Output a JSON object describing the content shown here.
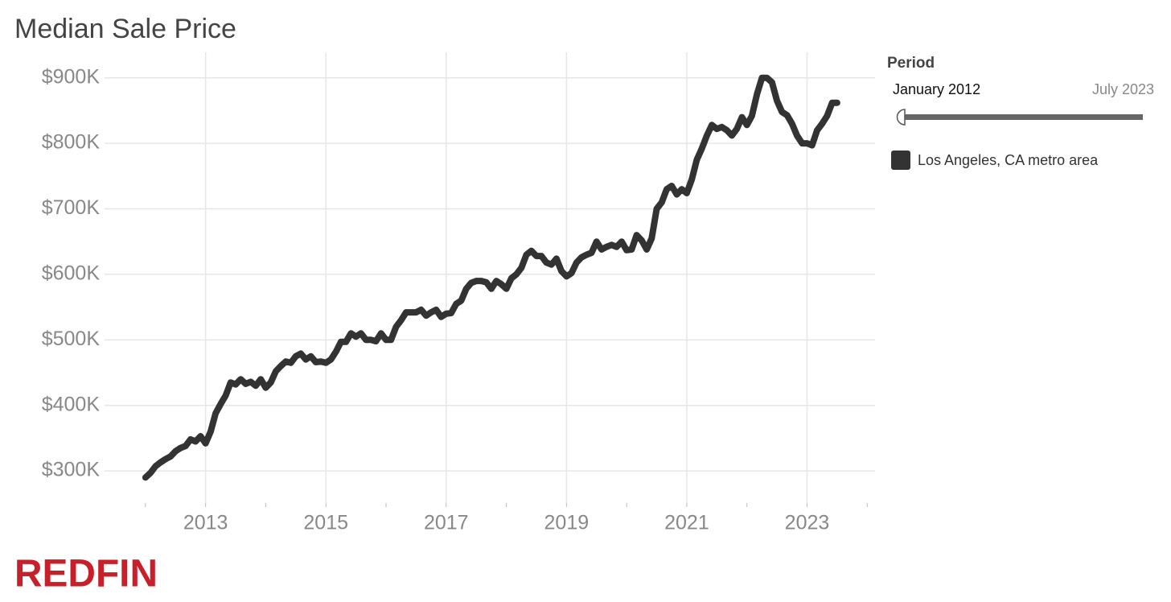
{
  "chart_data": {
    "type": "line",
    "title": "Median Sale Price",
    "logo": "REDFIN",
    "period_filter": {
      "label": "Period",
      "start": "January 2012",
      "end": "July 2023"
    },
    "x": [
      "2012-01",
      "2012-02",
      "2012-03",
      "2012-04",
      "2012-05",
      "2012-06",
      "2012-07",
      "2012-08",
      "2012-09",
      "2012-10",
      "2012-11",
      "2012-12",
      "2013-01",
      "2013-02",
      "2013-03",
      "2013-04",
      "2013-05",
      "2013-06",
      "2013-07",
      "2013-08",
      "2013-09",
      "2013-10",
      "2013-11",
      "2013-12",
      "2014-01",
      "2014-02",
      "2014-03",
      "2014-04",
      "2014-05",
      "2014-06",
      "2014-07",
      "2014-08",
      "2014-09",
      "2014-10",
      "2014-11",
      "2014-12",
      "2015-01",
      "2015-02",
      "2015-03",
      "2015-04",
      "2015-05",
      "2015-06",
      "2015-07",
      "2015-08",
      "2015-09",
      "2015-10",
      "2015-11",
      "2015-12",
      "2016-01",
      "2016-02",
      "2016-03",
      "2016-04",
      "2016-05",
      "2016-06",
      "2016-07",
      "2016-08",
      "2016-09",
      "2016-10",
      "2016-11",
      "2016-12",
      "2017-01",
      "2017-02",
      "2017-03",
      "2017-04",
      "2017-05",
      "2017-06",
      "2017-07",
      "2017-08",
      "2017-09",
      "2017-10",
      "2017-11",
      "2017-12",
      "2018-01",
      "2018-02",
      "2018-03",
      "2018-04",
      "2018-05",
      "2018-06",
      "2018-07",
      "2018-08",
      "2018-09",
      "2018-10",
      "2018-11",
      "2018-12",
      "2019-01",
      "2019-02",
      "2019-03",
      "2019-04",
      "2019-05",
      "2019-06",
      "2019-07",
      "2019-08",
      "2019-09",
      "2019-10",
      "2019-11",
      "2019-12",
      "2020-01",
      "2020-02",
      "2020-03",
      "2020-04",
      "2020-05",
      "2020-06",
      "2020-07",
      "2020-08",
      "2020-09",
      "2020-10",
      "2020-11",
      "2020-12",
      "2021-01",
      "2021-02",
      "2021-03",
      "2021-04",
      "2021-05",
      "2021-06",
      "2021-07",
      "2021-08",
      "2021-09",
      "2021-10",
      "2021-11",
      "2021-12",
      "2022-01",
      "2022-02",
      "2022-03",
      "2022-04",
      "2022-05",
      "2022-06",
      "2022-07",
      "2022-08",
      "2022-09",
      "2022-10",
      "2022-11",
      "2022-12",
      "2023-01",
      "2023-02",
      "2023-03",
      "2023-04",
      "2023-05",
      "2023-06",
      "2023-07"
    ],
    "series": [
      {
        "name": "Los Angeles, CA metro area",
        "color": "#333333",
        "values": [
          290000,
          297000,
          307000,
          313000,
          318000,
          322000,
          330000,
          335000,
          338000,
          348000,
          345000,
          353000,
          342000,
          360000,
          388000,
          402000,
          415000,
          435000,
          432000,
          440000,
          433000,
          436000,
          430000,
          440000,
          427000,
          435000,
          452000,
          460000,
          467000,
          465000,
          475000,
          479000,
          470000,
          475000,
          466000,
          467000,
          465000,
          470000,
          482000,
          497000,
          497000,
          510000,
          505000,
          510000,
          500000,
          500000,
          498000,
          510000,
          500000,
          500000,
          520000,
          530000,
          542000,
          542000,
          542000,
          546000,
          537000,
          542000,
          546000,
          535000,
          540000,
          541000,
          555000,
          560000,
          578000,
          587000,
          590000,
          590000,
          588000,
          578000,
          590000,
          585000,
          578000,
          594000,
          600000,
          610000,
          630000,
          636000,
          628000,
          628000,
          618000,
          615000,
          624000,
          605000,
          597000,
          602000,
          618000,
          626000,
          630000,
          633000,
          650000,
          638000,
          642000,
          645000,
          642000,
          650000,
          637000,
          638000,
          660000,
          652000,
          638000,
          655000,
          700000,
          710000,
          730000,
          735000,
          722000,
          730000,
          724000,
          745000,
          775000,
          792000,
          812000,
          828000,
          822000,
          825000,
          820000,
          812000,
          822000,
          840000,
          828000,
          842000,
          875000,
          900000,
          900000,
          893000,
          865000,
          848000,
          843000,
          830000,
          812000,
          800000,
          800000,
          797000,
          820000,
          830000,
          842000,
          862000,
          862000
        ]
      }
    ],
    "xlim": [
      2011.32,
      2024.13
    ],
    "xticks": [
      2013,
      2015,
      2017,
      2019,
      2021,
      2023
    ],
    "xminor_ticks": [
      2012,
      2014,
      2016,
      2018,
      2020,
      2022,
      2024
    ],
    "ylim": [
      251000,
      939000
    ],
    "yticks": [
      {
        "value": 300000,
        "label": "$300K"
      },
      {
        "value": 400000,
        "label": "$400K"
      },
      {
        "value": 500000,
        "label": "$500K"
      },
      {
        "value": 600000,
        "label": "$600K"
      },
      {
        "value": 700000,
        "label": "$700K"
      },
      {
        "value": 800000,
        "label": "$800K"
      },
      {
        "value": 900000,
        "label": "$900K"
      }
    ],
    "grid": true
  }
}
